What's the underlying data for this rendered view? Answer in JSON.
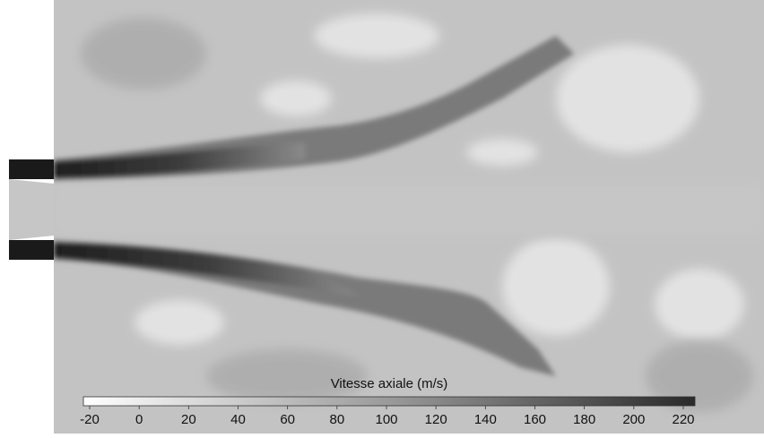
{
  "colorbar": {
    "title": "Vitesse axiale (m/s)",
    "lim": [
      -20,
      220
    ],
    "ticks": [
      -20,
      0,
      20,
      40,
      60,
      80,
      100,
      120,
      140,
      160,
      180,
      200,
      220
    ]
  }
}
